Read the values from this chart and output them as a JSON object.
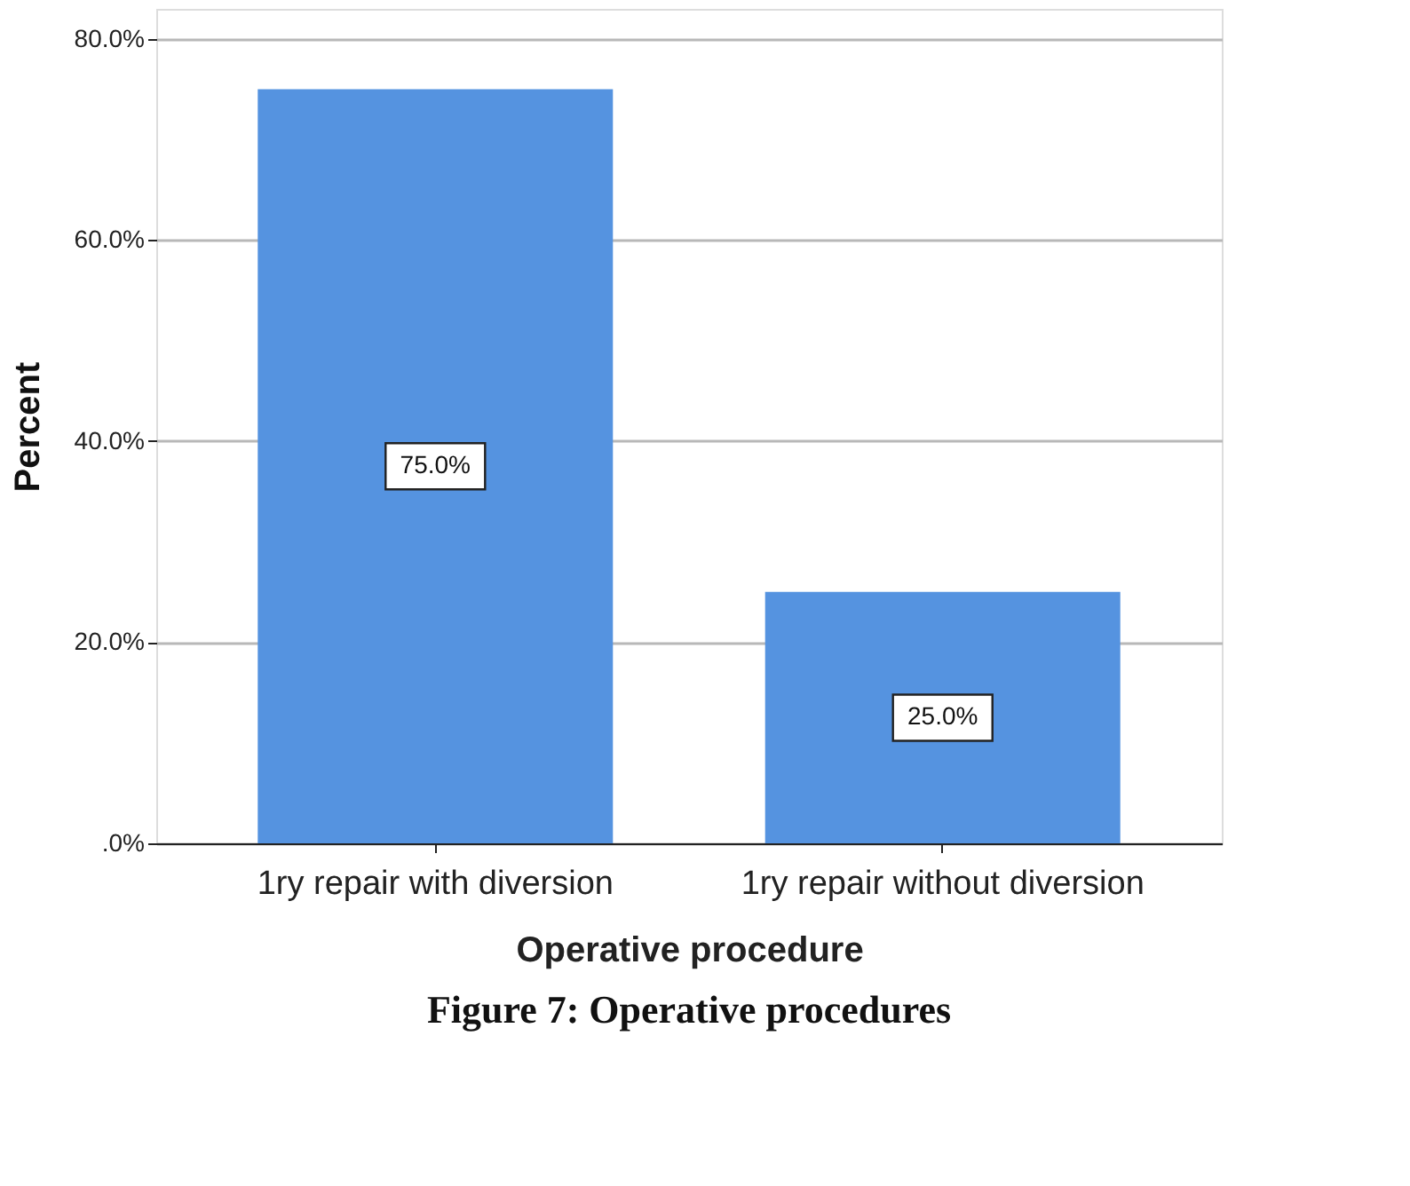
{
  "chart_data": {
    "type": "bar",
    "title": "Figure 7: Operative procedures",
    "xlabel": "Operative procedure",
    "ylabel": "Percent",
    "categories": [
      "1ry repair with diversion",
      "1ry repair without diversion"
    ],
    "values": [
      75.0,
      25.0
    ],
    "color": "#5593e0",
    "value_labels": [
      "75.0%",
      "25.0%"
    ],
    "ylim": [
      0,
      83
    ],
    "yticks": [
      {
        "value": 0,
        "label": ".0%"
      },
      {
        "value": 20,
        "label": "20.0%"
      },
      {
        "value": 40,
        "label": "40.0%"
      },
      {
        "value": 60,
        "label": "60.0%"
      },
      {
        "value": 80,
        "label": "80.0%"
      }
    ],
    "grid": "y"
  }
}
